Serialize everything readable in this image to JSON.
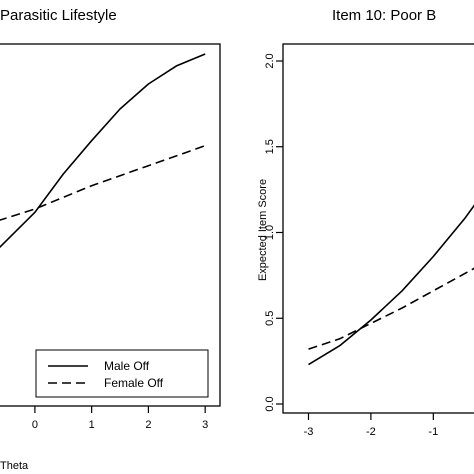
{
  "chart_data": [
    {
      "type": "line",
      "title": "Parasitic Lifestyle",
      "xlabel": "Theta",
      "ylabel": "",
      "xticks": [
        "0",
        "1",
        "2",
        "3"
      ],
      "xlim": [
        -0.65,
        3.05
      ],
      "ylim": [
        -0.05,
        2.05
      ],
      "grid": false,
      "legend": {
        "position": "bottom-right",
        "entries": [
          "Male Off",
          "Female Off"
        ]
      },
      "series": [
        {
          "name": "Male Off",
          "style": "solid",
          "x": [
            -0.65,
            0,
            0.5,
            1,
            1.5,
            2,
            2.5,
            3
          ],
          "y": [
            0.88,
            1.1,
            1.33,
            1.53,
            1.72,
            1.87,
            1.98,
            2.05
          ]
        },
        {
          "name": "Female Off",
          "style": "dashed",
          "x": [
            -0.65,
            0,
            1,
            2,
            3
          ],
          "y": [
            1.05,
            1.12,
            1.26,
            1.38,
            1.5
          ]
        }
      ]
    },
    {
      "type": "line",
      "title": "Item 10: Poor B",
      "xlabel": "",
      "ylabel": "Expected Item Score",
      "xticks": [
        "-3",
        "-2",
        "-1"
      ],
      "yticks": [
        "0.0",
        "0.5",
        "1.0",
        "1.5",
        "2.0"
      ],
      "xlim": [
        -3.2,
        -0.3
      ],
      "ylim": [
        -0.05,
        2.05
      ],
      "grid": false,
      "series": [
        {
          "name": "Male Off",
          "style": "solid",
          "x": [
            -3,
            -2.5,
            -2,
            -1.5,
            -1,
            -0.5,
            -0.3
          ],
          "y": [
            0.23,
            0.34,
            0.49,
            0.66,
            0.86,
            1.08,
            1.18
          ]
        },
        {
          "name": "Female Off",
          "style": "dashed",
          "x": [
            -3,
            -2.5,
            -2,
            -1.5,
            -1,
            -0.5,
            -0.3
          ],
          "y": [
            0.32,
            0.38,
            0.47,
            0.56,
            0.66,
            0.76,
            0.8
          ]
        }
      ]
    }
  ]
}
